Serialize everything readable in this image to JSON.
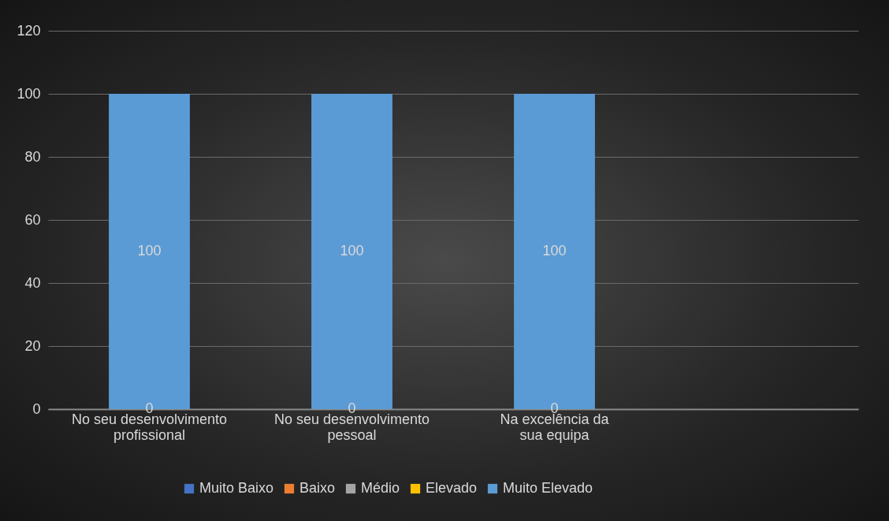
{
  "chart_data": {
    "type": "bar",
    "stacked": true,
    "categories": [
      "No seu desenvolvimento profissional",
      "No seu desenvolvimento pessoal",
      "Na excelência da sua equipa",
      null
    ],
    "series": [
      {
        "name": "Muito Baixo",
        "color": "#4472c4",
        "values": [
          0,
          0,
          0,
          null
        ]
      },
      {
        "name": "Baixo",
        "color": "#ed7d31",
        "values": [
          0,
          0,
          0,
          null
        ]
      },
      {
        "name": "Médio",
        "color": "#a5a5a5",
        "values": [
          0,
          0,
          0,
          null
        ]
      },
      {
        "name": "Elevado",
        "color": "#ffc000",
        "values": [
          0,
          0,
          0,
          null
        ]
      },
      {
        "name": "Muito Elevado",
        "color": "#5b9bd5",
        "values": [
          100,
          100,
          100,
          null
        ],
        "value_labels": [
          "100",
          "100",
          "100",
          null
        ]
      }
    ],
    "annotations": [
      {
        "text": "0",
        "x": "No seu desenvolvimento profissional",
        "y": 0
      },
      {
        "text": "0",
        "x": "No seu desenvolvimento pessoal",
        "y": 0
      },
      {
        "text": "0",
        "x": "Na excelência da sua equipa",
        "y": 0
      }
    ],
    "ylim": [
      0,
      120
    ],
    "yticks": [
      0,
      20,
      40,
      60,
      80,
      100,
      120
    ],
    "grid": "y",
    "legend": "bottom"
  }
}
